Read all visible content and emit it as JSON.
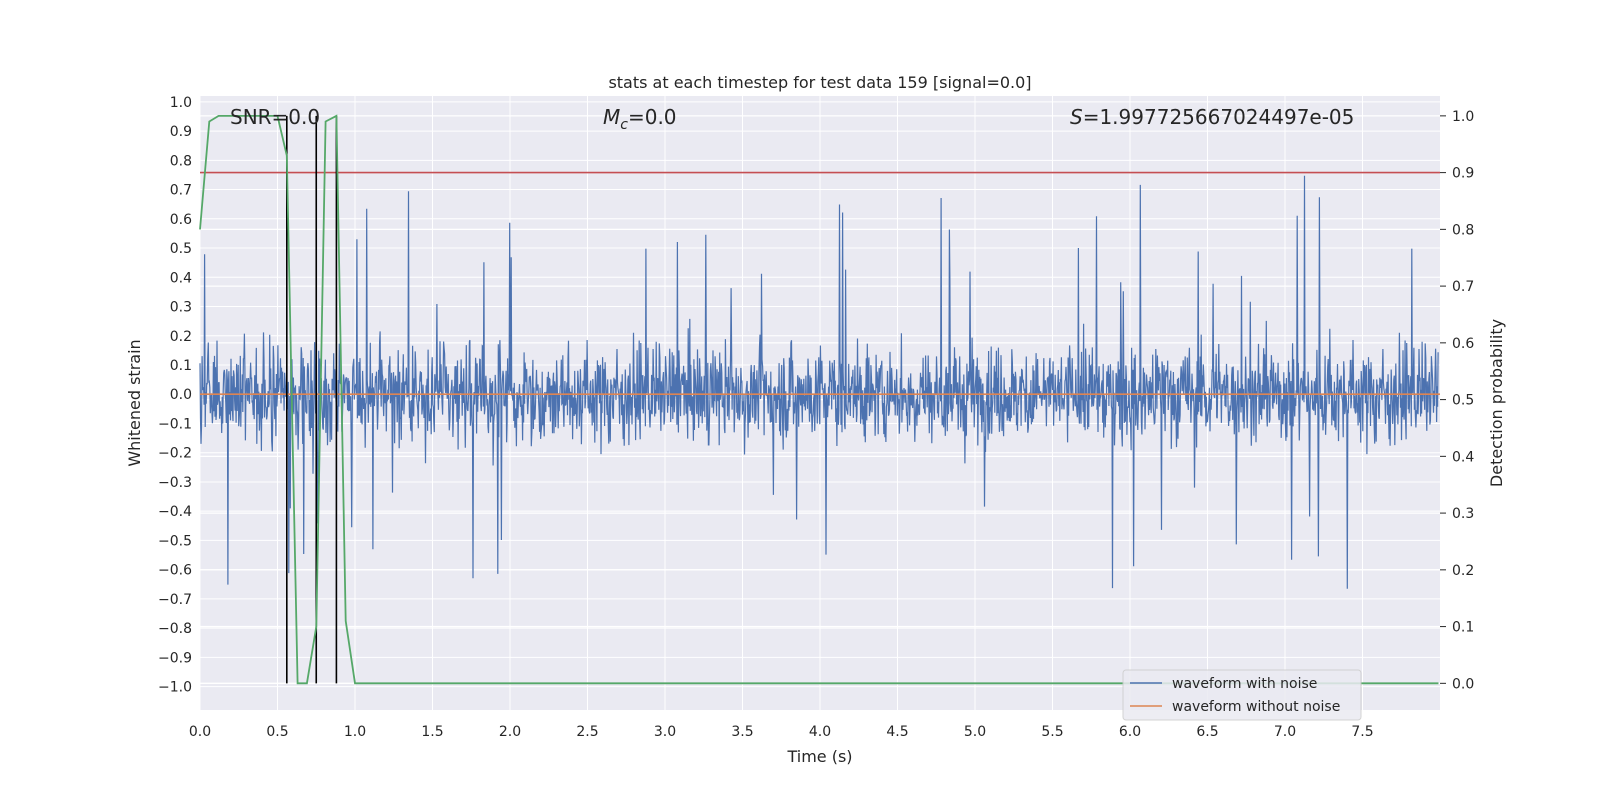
{
  "chart_data": {
    "type": "line",
    "title": "stats at each timestep for test data 159 [signal=0.0]",
    "xlabel": "Time (s)",
    "ylabel_left": "Whitened strain",
    "ylabel_right": "Detection probability",
    "xlim": [
      0.0,
      8.0
    ],
    "ylim_left": [
      -1.08,
      1.02
    ],
    "ylim_right": [
      -0.047,
      1.035
    ],
    "x_ticks": [
      "0.0",
      "0.5",
      "1.0",
      "1.5",
      "2.0",
      "2.5",
      "3.0",
      "3.5",
      "4.0",
      "4.5",
      "5.0",
      "5.5",
      "6.0",
      "6.5",
      "7.0",
      "7.5"
    ],
    "y_ticks_left": [
      "1.0",
      "0.9",
      "0.8",
      "0.7",
      "0.6",
      "0.5",
      "0.4",
      "0.3",
      "0.2",
      "0.1",
      "0.0",
      "−0.1",
      "−0.2",
      "−0.3",
      "−0.4",
      "−0.5",
      "−0.6",
      "−0.7",
      "−0.8",
      "−0.9",
      "−1.0"
    ],
    "y_ticks_right": [
      "1.0",
      "0.9",
      "0.8",
      "0.7",
      "0.6",
      "0.5",
      "0.4",
      "0.3",
      "0.2",
      "0.1",
      "0.0"
    ],
    "annotations": {
      "snr": "SNR=0.0",
      "mc_symbol": "M",
      "mc_sub": "c",
      "mc_value": "=0.0",
      "s_symbol": "S",
      "s_value": "=1.997725667024497e-05"
    },
    "threshold_line": {
      "axis": "right",
      "value": 0.9,
      "color": "#c44e52"
    },
    "vertical_lines": [
      0.56,
      0.75,
      0.88
    ],
    "series": [
      {
        "name": "waveform with noise",
        "axis": "left",
        "color": "#4c72b0",
        "envelope": "random noise, |amplitude| mostly ≤ 0.45, peaks to ±1.0"
      },
      {
        "name": "waveform without noise",
        "axis": "left",
        "color": "#dd8452",
        "x": [
          0.0,
          8.0
        ],
        "y": [
          0.0,
          0.0
        ]
      },
      {
        "name": "detection probability",
        "axis": "right",
        "color": "#55a868",
        "x": [
          0.0,
          0.06,
          0.12,
          0.25,
          0.5,
          0.56,
          0.63,
          0.69,
          0.75,
          0.81,
          0.88,
          0.94,
          1.0,
          7.99
        ],
        "y": [
          0.8,
          0.99,
          1.0,
          1.0,
          1.0,
          0.93,
          0.0,
          0.0,
          0.1,
          0.99,
          1.0,
          0.11,
          0.0,
          0.0
        ]
      }
    ],
    "legend": {
      "position": "lower-right",
      "entries": [
        {
          "label": "waveform with noise",
          "color": "#4c72b0"
        },
        {
          "label": "waveform without noise",
          "color": "#dd8452"
        }
      ]
    },
    "grid": true
  }
}
